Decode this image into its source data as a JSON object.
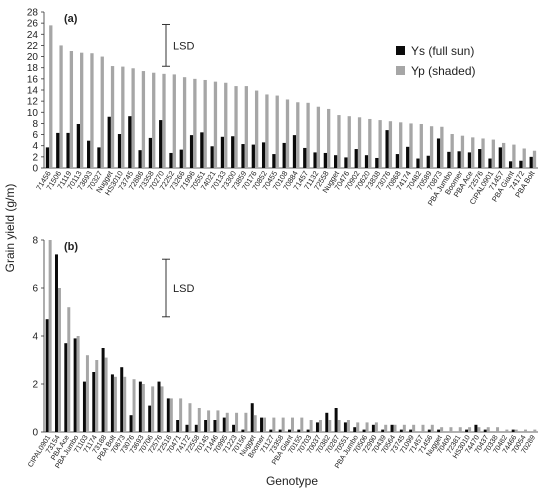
{
  "figure": {
    "ylabel": "Grain yield (g/m)",
    "xlabel": "Genotype"
  },
  "colors": {
    "ys": "#0a0a0a",
    "yp": "#a6a6a6",
    "axis": "#333333",
    "text": "#222222"
  },
  "chart_data": [
    {
      "type": "bar",
      "panel_label": "(a)",
      "ylim": [
        0,
        28
      ],
      "yticks": [
        0,
        2,
        4,
        6,
        8,
        10,
        12,
        14,
        16,
        18,
        20,
        22,
        24,
        26,
        28
      ],
      "lsd": {
        "label": "LSD",
        "value": 7.5
      },
      "legend": {
        "position": "top-right"
      },
      "categories": [
        "71456",
        "71506",
        "71119",
        "70113",
        "73693",
        "70327",
        "Nugget",
        "HS3010",
        "73745",
        "72886",
        "73358",
        "70270",
        "72252",
        "73266",
        "71996",
        "70551",
        "74021",
        "70133",
        "73300",
        "73859",
        "70176",
        "70852",
        "70455",
        "70108",
        "70884",
        "71457",
        "71132",
        "72558",
        "Nugget",
        "70476",
        "70902",
        "70620",
        "73838",
        "73076",
        "70868",
        "74174",
        "70482",
        "70589",
        "70873",
        "PBA Jumbo",
        "Boomer",
        "PBA Ace",
        "72576",
        "CIPAL0901",
        "71457",
        "PBA Giant",
        "74172",
        "PBA Bolt"
      ],
      "series": [
        {
          "name": "Ys (full sun)",
          "values": [
            3.7,
            6.3,
            6.3,
            7.9,
            4.9,
            3.7,
            9.2,
            6.1,
            9.3,
            3.2,
            5.4,
            8.6,
            2.7,
            3.3,
            5.9,
            6.4,
            3.9,
            5.6,
            5.7,
            4.3,
            4.2,
            4.6,
            2.5,
            4.5,
            5.9,
            3.6,
            2.8,
            2.7,
            2.3,
            1.9,
            3.4,
            2.3,
            1.8,
            6.8,
            2.5,
            3.8,
            1.7,
            2.2,
            5.3,
            2.9,
            3.0,
            2.8,
            3.4,
            1.7,
            3.7,
            1.2,
            1.3,
            2.0
          ]
        },
        {
          "name": "Yp (shaded)",
          "values": [
            25.6,
            22.0,
            21.0,
            20.7,
            20.6,
            20.0,
            18.3,
            18.2,
            17.9,
            17.4,
            17.1,
            16.9,
            16.8,
            16.3,
            16.0,
            15.8,
            15.5,
            15.3,
            14.7,
            14.7,
            13.9,
            13.2,
            13.0,
            12.3,
            11.8,
            11.7,
            11.0,
            10.6,
            9.5,
            9.3,
            9.1,
            8.8,
            8.6,
            8.4,
            8.2,
            8.0,
            7.9,
            7.5,
            7.4,
            6.1,
            5.8,
            5.5,
            5.3,
            5.1,
            4.5,
            4.2,
            3.5,
            3.1
          ]
        }
      ]
    },
    {
      "type": "bar",
      "panel_label": "(b)",
      "ylim": [
        0,
        8
      ],
      "yticks": [
        0,
        2,
        4,
        6,
        8
      ],
      "lsd": {
        "label": "LSD",
        "value": 2.4
      },
      "categories": [
        "CIPAL0901",
        "73154",
        "PBA Ace",
        "PBA Jumbo",
        "71103",
        "71174",
        "73188",
        "PBA Bolt",
        "70673",
        "73076",
        "73693",
        "70706",
        "72576",
        "72516",
        "70471",
        "74172",
        "72558",
        "70145",
        "71446",
        "70995",
        "71223",
        "70156",
        "Nugget",
        "Boomer",
        "71127",
        "73358",
        "PBA Giant",
        "70155",
        "70703",
        "70037",
        "70382",
        "70287",
        "70551",
        "PBA Jumbo",
        "70506",
        "72990",
        "70439",
        "70564",
        "73745",
        "71099",
        "71457",
        "71456",
        "Nugget",
        "70400",
        "72381",
        "HS3010",
        "74470",
        "70437",
        "70338",
        "70482",
        "74466",
        "70054",
        "70289"
      ],
      "series": [
        {
          "name": "Ys (full sun)",
          "values": [
            4.7,
            7.4,
            3.7,
            3.9,
            2.1,
            2.5,
            3.5,
            2.4,
            2.7,
            0.7,
            2.1,
            1.1,
            2.1,
            1.4,
            0.5,
            0.3,
            0.3,
            0.5,
            0.5,
            0.6,
            0.3,
            0.1,
            1.2,
            0.6,
            0.1,
            0.1,
            0.1,
            0.1,
            0.1,
            0.4,
            0.8,
            1.0,
            0.4,
            0.2,
            0.1,
            0.3,
            0.1,
            0.3,
            0.1,
            0.1,
            0.0,
            0.1,
            0.1,
            0.0,
            0.0,
            0.1,
            0.3,
            0.1,
            0.0,
            0.0,
            0.1,
            0.0,
            0.0
          ]
        },
        {
          "name": "Yp (shaded)",
          "values": [
            8.0,
            6.0,
            5.2,
            4.0,
            3.2,
            3.0,
            3.1,
            2.3,
            2.3,
            2.2,
            2.0,
            1.9,
            1.9,
            1.4,
            1.4,
            1.2,
            1.0,
            0.9,
            0.9,
            0.8,
            0.8,
            0.8,
            0.7,
            0.6,
            0.6,
            0.6,
            0.6,
            0.6,
            0.5,
            0.5,
            0.5,
            0.5,
            0.5,
            0.4,
            0.4,
            0.4,
            0.3,
            0.3,
            0.3,
            0.3,
            0.3,
            0.3,
            0.2,
            0.2,
            0.2,
            0.2,
            0.2,
            0.2,
            0.2,
            0.1,
            0.1,
            0.1,
            0.1
          ]
        }
      ]
    }
  ]
}
